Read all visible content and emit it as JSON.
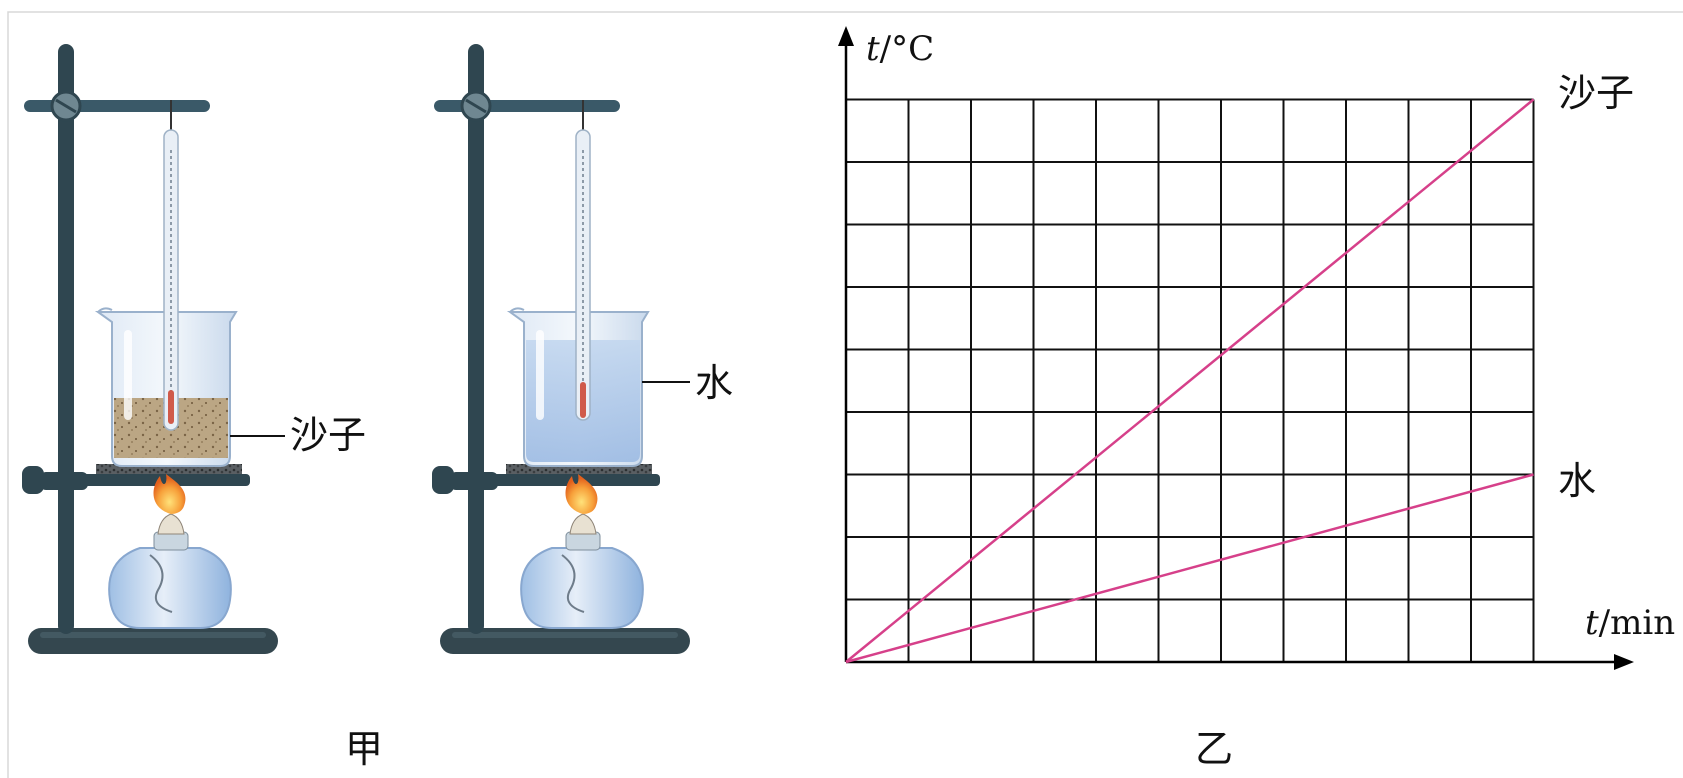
{
  "apparatus": {
    "caption": "甲",
    "sand_label": "沙子",
    "water_label": "水"
  },
  "graph": {
    "caption": "乙",
    "y_axis_var": "t",
    "y_axis_unit": "/°C",
    "x_axis_var": "t",
    "x_axis_unit": "/min",
    "sand_line_label": "沙子",
    "water_line_label": "水"
  },
  "chart_data": {
    "type": "line",
    "grid": true,
    "grid_columns": 11,
    "grid_rows": 9,
    "x": [
      0,
      11
    ],
    "series": [
      {
        "name": "沙子",
        "values": [
          0,
          9
        ],
        "color": "#d6408a"
      },
      {
        "name": "水",
        "values": [
          0,
          3
        ],
        "color": "#d6408a"
      }
    ]
  },
  "colors": {
    "stand": "#2f4650",
    "line": "#d6408a",
    "sand": "#b7a07c",
    "water": "#a9c6e8",
    "flame": "#f08a2b"
  }
}
